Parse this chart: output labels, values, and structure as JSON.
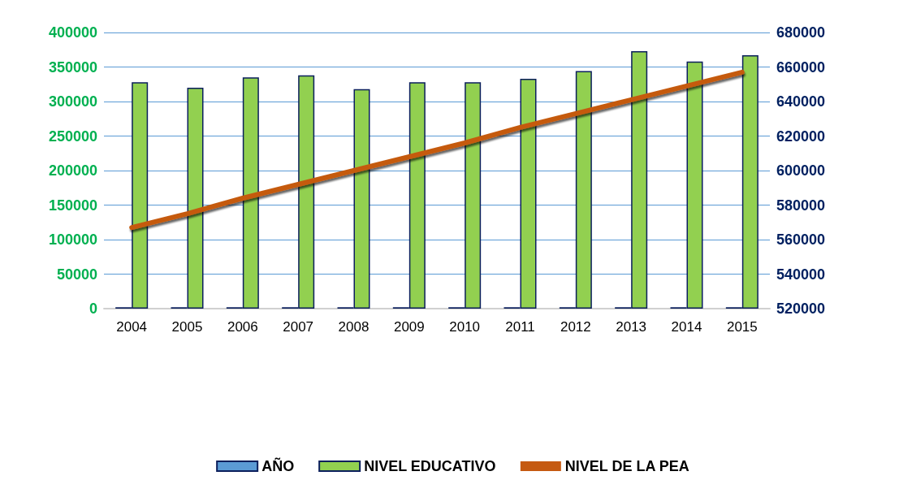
{
  "chart_data": {
    "type": "bar",
    "categories": [
      "2004",
      "2005",
      "2006",
      "2007",
      "2008",
      "2009",
      "2010",
      "2011",
      "2012",
      "2013",
      "2014",
      "2015"
    ],
    "series": [
      {
        "name": "AÑO",
        "color": "#5b9bd5",
        "values": [
          2004,
          2005,
          2006,
          2007,
          2008,
          2009,
          2010,
          2011,
          2012,
          2013,
          2014,
          2015
        ]
      },
      {
        "name": "NIVEL EDUCATIVO",
        "color": "#92d050",
        "values": [
          328000,
          320000,
          335000,
          338000,
          318000,
          328000,
          328000,
          333000,
          344000,
          373000,
          358000,
          367000
        ]
      },
      {
        "name": "NIVEL DE LA PEA",
        "type": "line",
        "axis": "y2",
        "color": "#c55a11",
        "values": [
          567000,
          575000,
          584000,
          592000,
          600000,
          608000,
          616000,
          625000,
          633000,
          641000,
          649000,
          657000
        ]
      }
    ],
    "ylim": [
      0,
      400000
    ],
    "yticks": [
      0,
      50000,
      100000,
      150000,
      200000,
      250000,
      300000,
      350000,
      400000
    ],
    "y2lim": [
      520000,
      680000
    ],
    "y2ticks": [
      520000,
      540000,
      560000,
      580000,
      600000,
      620000,
      640000,
      660000,
      680000
    ],
    "grid": "y",
    "legend": "bottom",
    "marker": "none"
  }
}
